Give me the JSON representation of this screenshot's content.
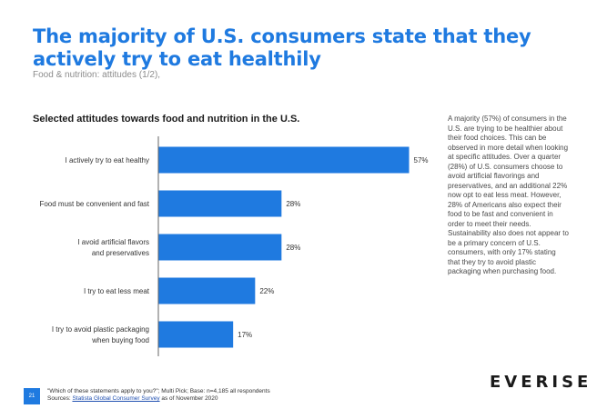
{
  "page": {
    "title": "The majority of U.S. consumers state that they actively try to eat healthily",
    "subtitle": "Food & nutrition: attitudes (1/2),",
    "page_number": "21",
    "logo_text": "EVERISE"
  },
  "side_text": "A majority (57%) of consumers in the U.S. are trying to be healthier about their food choices. This can be observed in more detail when looking  at  specific attitudes. Over a quarter (28%) of U.S. consumers choose to avoid artificial flavorings and preservatives, and an additional 22% now opt to eat less meat. However, 28% of Americans also expect their food to be fast and convenient in order to meet their needs. Sustainability also does not appear to be a primary concern of U.S. consumers, with only 17% stating that they try to avoid plastic packaging when purchasing food.",
  "footnote": {
    "question": "\"Which of these statements apply to you?\"; Multi Pick; Base: n=4,185 all respondents",
    "sources_prefix": "Sources: ",
    "source_link": "Statista Global Consumer Survey",
    "sources_suffix": " as of November 2020"
  },
  "chart_data": {
    "type": "bar",
    "orientation": "horizontal",
    "title": "Selected attitudes towards food and nutrition in the U.S.",
    "categories": [
      [
        "I actively try to eat healthy"
      ],
      [
        "Food must be convenient and fast"
      ],
      [
        "I avoid artificial flavors",
        "and preservatives"
      ],
      [
        "I try to eat less meat"
      ],
      [
        "I try to avoid plastic packaging",
        "when buying food"
      ]
    ],
    "values": [
      57,
      28,
      28,
      22,
      17
    ],
    "value_suffix": "%",
    "xlim": [
      0,
      60
    ],
    "grid": false,
    "legend": "none",
    "bar_color": "#1f7ae0"
  }
}
